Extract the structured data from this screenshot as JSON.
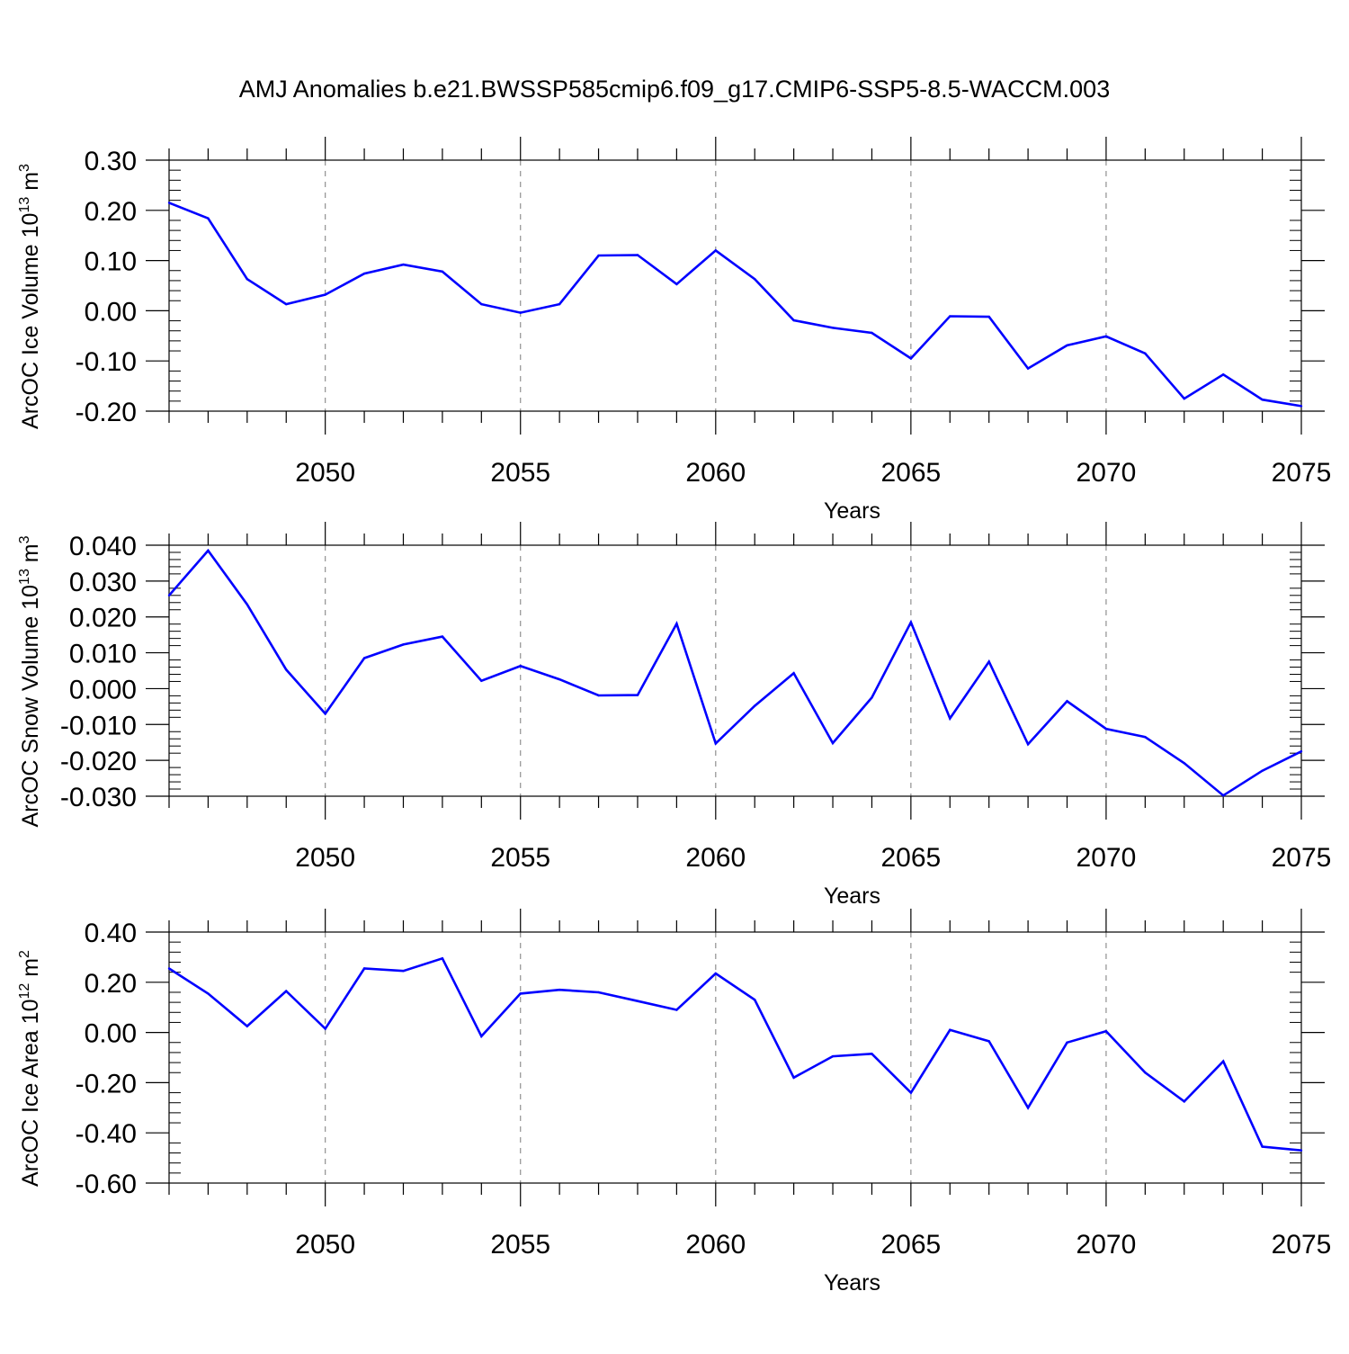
{
  "title": "AMJ Anomalies b.e21.BWSSP585cmip6.f09_g17.CMIP6-SSP5-8.5-WACCM.003",
  "line_color": "#0000ff",
  "chart_data": [
    {
      "type": "line",
      "ylabel": "ArcOC Ice Volume 10",
      "ylabel_exp": "13",
      "ylabel_unit": "m",
      "ylabel_unit_exp": "3",
      "xlabel": "Years",
      "xlim": [
        2046,
        2075
      ],
      "ylim": [
        -0.2,
        0.3
      ],
      "yticks": [
        -0.2,
        -0.1,
        0.0,
        0.1,
        0.2,
        0.3
      ],
      "ytick_labels": [
        "-0.20",
        "-0.10",
        "0.00",
        "0.10",
        "0.20",
        "0.30"
      ],
      "xticks": [
        2050,
        2055,
        2060,
        2065,
        2070,
        2075
      ],
      "xtick_labels": [
        "2050",
        "2055",
        "2060",
        "2065",
        "2070",
        "2075"
      ],
      "grid": "vertical dashed at major x ticks",
      "x": [
        2046,
        2047,
        2048,
        2049,
        2050,
        2051,
        2052,
        2053,
        2054,
        2055,
        2056,
        2057,
        2058,
        2059,
        2060,
        2061,
        2062,
        2063,
        2064,
        2065,
        2066,
        2067,
        2068,
        2069,
        2070,
        2071,
        2072,
        2073,
        2074,
        2075
      ],
      "y": [
        0.215,
        0.184,
        0.063,
        0.013,
        0.032,
        0.074,
        0.092,
        0.078,
        0.013,
        -0.004,
        0.013,
        0.11,
        0.111,
        0.053,
        0.12,
        0.063,
        -0.019,
        -0.034,
        -0.044,
        -0.095,
        -0.011,
        -0.012,
        -0.115,
        -0.069,
        -0.051,
        -0.085,
        -0.175,
        -0.127,
        -0.177,
        -0.19
      ]
    },
    {
      "type": "line",
      "ylabel": "ArcOC Snow Volume 10",
      "ylabel_exp": "13",
      "ylabel_unit": "m",
      "ylabel_unit_exp": "3",
      "xlabel": "Years",
      "xlim": [
        2046,
        2075
      ],
      "ylim": [
        -0.03,
        0.04
      ],
      "yticks": [
        -0.03,
        -0.02,
        -0.01,
        0.0,
        0.01,
        0.02,
        0.03,
        0.04
      ],
      "ytick_labels": [
        "-0.030",
        "-0.020",
        "-0.010",
        "0.000",
        "0.010",
        "0.020",
        "0.030",
        "0.040"
      ],
      "xticks": [
        2050,
        2055,
        2060,
        2065,
        2070,
        2075
      ],
      "xtick_labels": [
        "2050",
        "2055",
        "2060",
        "2065",
        "2070",
        "2075"
      ],
      "grid": "vertical dashed at major x ticks",
      "x": [
        2046,
        2047,
        2048,
        2049,
        2050,
        2051,
        2052,
        2053,
        2054,
        2055,
        2056,
        2057,
        2058,
        2059,
        2060,
        2061,
        2062,
        2063,
        2064,
        2065,
        2066,
        2067,
        2068,
        2069,
        2070,
        2071,
        2072,
        2073,
        2074,
        2075
      ],
      "y": [
        0.026,
        0.0385,
        0.0235,
        0.0053,
        -0.007,
        0.0085,
        0.0123,
        0.0145,
        0.0022,
        0.0063,
        0.0026,
        -0.0019,
        -0.0018,
        0.0181,
        -0.0153,
        -0.0048,
        0.0043,
        -0.0152,
        -0.0025,
        0.0185,
        -0.0083,
        0.0075,
        -0.0155,
        -0.0035,
        -0.0112,
        -0.0135,
        -0.0208,
        -0.0298,
        -0.0229,
        -0.0175
      ]
    },
    {
      "type": "line",
      "ylabel": "ArcOC Ice Area 10",
      "ylabel_exp": "12",
      "ylabel_unit": "m",
      "ylabel_unit_exp": "2",
      "xlabel": "Years",
      "xlim": [
        2046,
        2075
      ],
      "ylim": [
        -0.6,
        0.4
      ],
      "yticks": [
        -0.6,
        -0.4,
        -0.2,
        0.0,
        0.2,
        0.4
      ],
      "ytick_labels": [
        "-0.60",
        "-0.40",
        "-0.20",
        "0.00",
        "0.20",
        "0.40"
      ],
      "xticks": [
        2050,
        2055,
        2060,
        2065,
        2070,
        2075
      ],
      "xtick_labels": [
        "2050",
        "2055",
        "2060",
        "2065",
        "2070",
        "2075"
      ],
      "grid": "vertical dashed at major x ticks",
      "x": [
        2046,
        2047,
        2048,
        2049,
        2050,
        2051,
        2052,
        2053,
        2054,
        2055,
        2056,
        2057,
        2058,
        2059,
        2060,
        2061,
        2062,
        2063,
        2064,
        2065,
        2066,
        2067,
        2068,
        2069,
        2070,
        2071,
        2072,
        2073,
        2074,
        2075
      ],
      "y": [
        0.255,
        0.155,
        0.025,
        0.165,
        0.015,
        0.255,
        0.245,
        0.295,
        -0.015,
        0.155,
        0.17,
        0.16,
        0.125,
        0.09,
        0.235,
        0.13,
        -0.18,
        -0.095,
        -0.085,
        -0.24,
        0.01,
        -0.035,
        -0.3,
        -0.04,
        0.005,
        -0.16,
        -0.275,
        -0.115,
        -0.455,
        -0.47
      ]
    }
  ]
}
